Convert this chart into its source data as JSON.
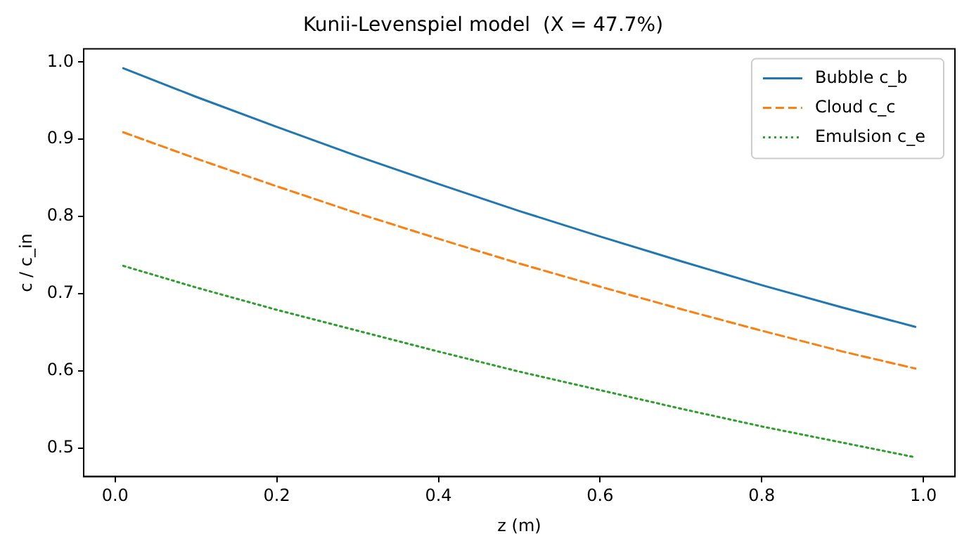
{
  "chart_data": {
    "type": "line",
    "title": "Kunii-Levenspiel model  (X = 47.7%)",
    "xlabel": "z (m)",
    "ylabel": "c / c_in",
    "x": [
      0.01,
      0.1,
      0.2,
      0.3,
      0.4,
      0.5,
      0.6,
      0.7,
      0.8,
      0.9,
      0.99
    ],
    "series": [
      {
        "name": "Bubble c_b",
        "color": "#1f77b4",
        "line_style": "solid",
        "values": [
          0.992,
          0.955,
          0.916,
          0.878,
          0.842,
          0.807,
          0.774,
          0.742,
          0.711,
          0.682,
          0.657
        ]
      },
      {
        "name": "Cloud c_c",
        "color": "#ff7f0e",
        "line_style": "dashed",
        "values": [
          0.909,
          0.875,
          0.839,
          0.804,
          0.771,
          0.739,
          0.709,
          0.68,
          0.652,
          0.625,
          0.603
        ]
      },
      {
        "name": "Emulsion c_e",
        "color": "#2ca02c",
        "line_style": "dotted",
        "values": [
          0.736,
          0.708,
          0.679,
          0.652,
          0.625,
          0.599,
          0.575,
          0.551,
          0.528,
          0.507,
          0.488
        ]
      }
    ],
    "xlim": [
      -0.039,
      1.039
    ],
    "ylim": [
      0.463,
      1.017
    ],
    "xticks": [
      {
        "value": 0,
        "label": "0.0"
      },
      0.2,
      0.4,
      0.6,
      0.8,
      {
        "value": 1,
        "label": "1.0"
      }
    ],
    "yticks": [
      0.5,
      0.6,
      0.7,
      0.8,
      0.9,
      {
        "value": 1,
        "label": "1.0"
      }
    ],
    "grid": false,
    "legend": "top right",
    "marker": "none"
  }
}
